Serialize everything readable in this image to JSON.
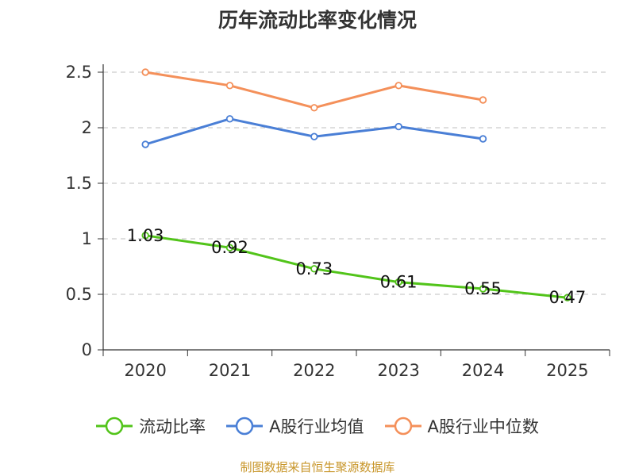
{
  "chart_data": {
    "type": "line",
    "title": "历年流动比率变化情况",
    "categories": [
      "2020",
      "2021",
      "2022",
      "2023",
      "2024",
      "2025"
    ],
    "ylim": [
      0,
      2.5
    ],
    "yticks": [
      "0",
      "0.5",
      "1",
      "1.5",
      "2",
      "2.5"
    ],
    "grid": true,
    "legend_position": "bottom",
    "series": [
      {
        "name": "流动比率",
        "color": "#52c41a",
        "values": [
          1.03,
          0.92,
          0.73,
          0.61,
          0.55,
          0.47
        ],
        "labels": [
          "1.03",
          "0.92",
          "0.73",
          "0.61",
          "0.55",
          "0.47"
        ]
      },
      {
        "name": "A股行业均值",
        "color": "#4a7fd6",
        "values": [
          1.85,
          2.08,
          1.92,
          2.01,
          1.9,
          null
        ]
      },
      {
        "name": "A股行业中位数",
        "color": "#f4905a",
        "values": [
          2.5,
          2.38,
          2.18,
          2.38,
          2.25,
          null
        ]
      }
    ],
    "source": "制图数据来自恒生聚源数据库"
  }
}
